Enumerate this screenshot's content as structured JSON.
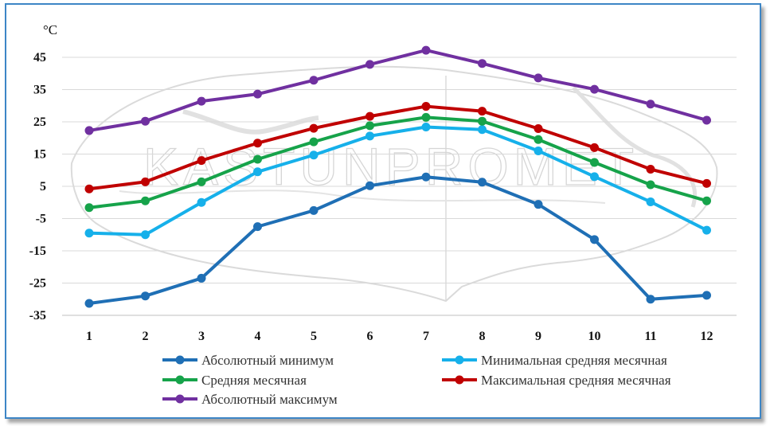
{
  "chart_data": {
    "type": "line",
    "unit_label": "°C",
    "categories": [
      "1",
      "2",
      "3",
      "4",
      "5",
      "6",
      "7",
      "8",
      "9",
      "10",
      "11",
      "12"
    ],
    "ylim": [
      -35,
      45
    ],
    "yticks": [
      45,
      35,
      25,
      15,
      5,
      -5,
      -15,
      -25,
      -35
    ],
    "grid": true,
    "legend_position": "bottom",
    "watermark": "KASTUNPROMET",
    "series": [
      {
        "name": "Абсолютный минимум",
        "color": "#1f6fb5",
        "values": [
          -31.3,
          -29,
          -23.5,
          -7.5,
          -2.5,
          5.2,
          7.9,
          6.3,
          -0.6,
          -11.5,
          -30,
          -28.8
        ]
      },
      {
        "name": "Минимальная средняя месячная",
        "color": "#16b0ea",
        "values": [
          -9.5,
          -10,
          0,
          9.5,
          14.7,
          20.6,
          23.4,
          22.6,
          16,
          8,
          0.2,
          -8.6
        ]
      },
      {
        "name": "Средняя месячная",
        "color": "#16a34a",
        "values": [
          -1.6,
          0.5,
          6.4,
          13.4,
          18.8,
          23.8,
          26.4,
          25.2,
          19.5,
          12.4,
          5.5,
          0.5
        ]
      },
      {
        "name": "Максимальная средняя месячная",
        "color": "#c00000",
        "values": [
          4.2,
          6.4,
          13,
          18.4,
          23,
          26.7,
          29.8,
          28.3,
          22.9,
          17,
          10.3,
          5.9
        ]
      },
      {
        "name": "Абсолютный максимум",
        "color": "#7030a0",
        "values": [
          22.3,
          25.2,
          31.4,
          33.6,
          37.9,
          42.8,
          47.2,
          43.1,
          38.6,
          35.1,
          30.5,
          25.5
        ]
      }
    ]
  }
}
